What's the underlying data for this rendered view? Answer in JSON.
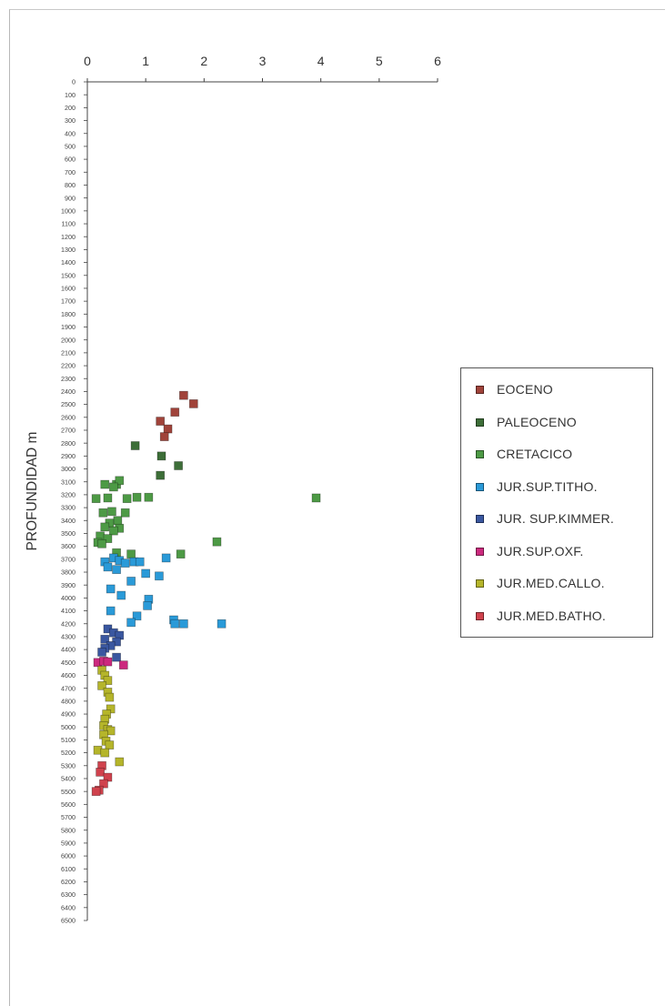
{
  "chart_data": {
    "type": "scatter",
    "title": "",
    "xlabel": "",
    "ylabel": "PROFUNDIDAD m",
    "xlim": [
      0,
      6
    ],
    "ylim": [
      0,
      6500
    ],
    "y_inverted": true,
    "x_ticks": [
      "0",
      "1",
      "2",
      "3",
      "4",
      "5",
      "6"
    ],
    "y_ticks": [
      "0",
      "100",
      "200",
      "300",
      "400",
      "500",
      "600",
      "700",
      "800",
      "900",
      "1000",
      "1100",
      "1200",
      "1300",
      "1400",
      "1500",
      "1600",
      "1700",
      "1800",
      "1900",
      "2000",
      "2100",
      "2200",
      "2300",
      "2400",
      "2500",
      "2600",
      "2700",
      "2800",
      "2900",
      "3000",
      "3100",
      "3200",
      "3300",
      "3400",
      "3500",
      "3600",
      "3700",
      "3800",
      "3900",
      "4000",
      "4100",
      "4200",
      "4300",
      "4400",
      "4500",
      "4600",
      "4700",
      "4800",
      "4900",
      "5000",
      "5100",
      "5200",
      "5300",
      "5400",
      "5500",
      "5600",
      "5700",
      "5800",
      "5900",
      "6000",
      "6100",
      "6200",
      "6300",
      "6400",
      "6500"
    ],
    "grid": false,
    "legend_position": "right",
    "series": [
      {
        "name": "EOCENO",
        "color": "#a0433a",
        "points": [
          [
            1.65,
            2430
          ],
          [
            1.82,
            2495
          ],
          [
            1.5,
            2560
          ],
          [
            1.25,
            2630
          ],
          [
            1.38,
            2690
          ],
          [
            1.32,
            2750
          ]
        ]
      },
      {
        "name": "PALEOCENO",
        "color": "#3d6e38",
        "points": [
          [
            0.82,
            2820
          ],
          [
            1.27,
            2900
          ],
          [
            1.56,
            2975
          ],
          [
            1.25,
            3050
          ]
        ]
      },
      {
        "name": "CRETACICO",
        "color": "#4d9a45",
        "points": [
          [
            0.3,
            3120
          ],
          [
            0.5,
            3120
          ],
          [
            0.55,
            3090
          ],
          [
            0.45,
            3140
          ],
          [
            0.15,
            3230
          ],
          [
            0.35,
            3225
          ],
          [
            0.68,
            3230
          ],
          [
            0.85,
            3220
          ],
          [
            1.05,
            3220
          ],
          [
            3.92,
            3225
          ],
          [
            0.27,
            3340
          ],
          [
            0.42,
            3330
          ],
          [
            0.65,
            3340
          ],
          [
            0.52,
            3400
          ],
          [
            0.38,
            3420
          ],
          [
            0.3,
            3450
          ],
          [
            0.55,
            3460
          ],
          [
            0.45,
            3480
          ],
          [
            0.22,
            3520
          ],
          [
            0.35,
            3540
          ],
          [
            0.18,
            3570
          ],
          [
            0.25,
            3580
          ],
          [
            2.22,
            3565
          ],
          [
            0.75,
            3660
          ],
          [
            1.6,
            3660
          ],
          [
            0.5,
            3650
          ]
        ]
      },
      {
        "name": "JUR.SUP.TITHO.",
        "color": "#2a9ad8",
        "points": [
          [
            0.3,
            3720
          ],
          [
            0.45,
            3690
          ],
          [
            0.55,
            3710
          ],
          [
            0.65,
            3730
          ],
          [
            0.8,
            3720
          ],
          [
            0.9,
            3720
          ],
          [
            1.35,
            3690
          ],
          [
            0.35,
            3760
          ],
          [
            0.5,
            3780
          ],
          [
            1.0,
            3810
          ],
          [
            1.23,
            3830
          ],
          [
            0.75,
            3870
          ],
          [
            0.4,
            3930
          ],
          [
            0.58,
            3980
          ],
          [
            1.05,
            4010
          ],
          [
            1.03,
            4060
          ],
          [
            0.4,
            4100
          ],
          [
            0.85,
            4140
          ],
          [
            0.75,
            4190
          ],
          [
            1.48,
            4170
          ],
          [
            1.5,
            4200
          ],
          [
            1.65,
            4200
          ],
          [
            2.3,
            4200
          ]
        ]
      },
      {
        "name": "JUR. SUP.KIMMER.",
        "color": "#3a57a0",
        "points": [
          [
            0.35,
            4240
          ],
          [
            0.45,
            4270
          ],
          [
            0.55,
            4290
          ],
          [
            0.3,
            4320
          ],
          [
            0.5,
            4340
          ],
          [
            0.4,
            4370
          ],
          [
            0.3,
            4390
          ],
          [
            0.25,
            4420
          ],
          [
            0.5,
            4460
          ]
        ]
      },
      {
        "name": "JUR.SUP.OXF.",
        "color": "#cc2a7e",
        "points": [
          [
            0.18,
            4500
          ],
          [
            0.28,
            4490
          ],
          [
            0.35,
            4495
          ],
          [
            0.62,
            4520
          ]
        ]
      },
      {
        "name": "JUR.MED.CALLO.",
        "color": "#b5b52a",
        "points": [
          [
            0.25,
            4560
          ],
          [
            0.3,
            4600
          ],
          [
            0.35,
            4640
          ],
          [
            0.25,
            4680
          ],
          [
            0.35,
            4730
          ],
          [
            0.38,
            4770
          ],
          [
            0.4,
            4860
          ],
          [
            0.33,
            4900
          ],
          [
            0.3,
            4940
          ],
          [
            0.28,
            4990
          ],
          [
            0.35,
            5020
          ],
          [
            0.4,
            5030
          ],
          [
            0.28,
            5060
          ],
          [
            0.32,
            5110
          ],
          [
            0.38,
            5140
          ],
          [
            0.18,
            5180
          ],
          [
            0.3,
            5200
          ],
          [
            0.55,
            5270
          ]
        ]
      },
      {
        "name": "JUR.MED.BATHO.",
        "color": "#d0424d",
        "points": [
          [
            0.25,
            5300
          ],
          [
            0.22,
            5350
          ],
          [
            0.35,
            5390
          ],
          [
            0.28,
            5440
          ],
          [
            0.2,
            5490
          ],
          [
            0.15,
            5500
          ]
        ]
      }
    ]
  }
}
